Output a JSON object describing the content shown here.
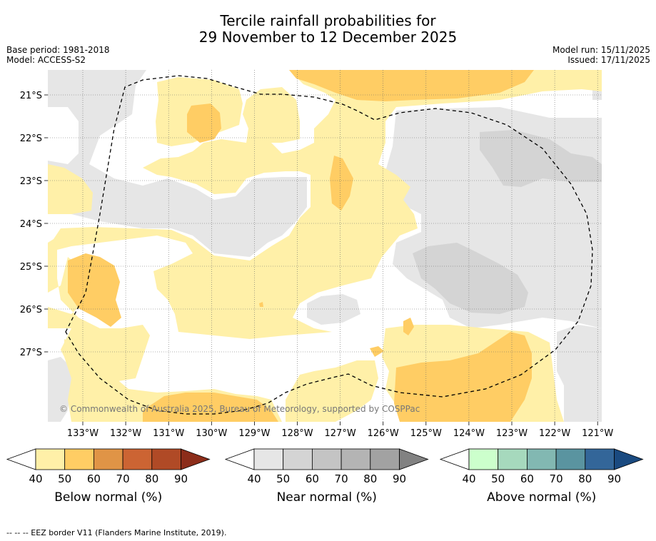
{
  "chart_data": {
    "type": "heatmap",
    "title_line1": "Tercile rainfall probabilities for",
    "title_line2": "29 November to 12 December 2025",
    "base_period": "Base period: 1981-2018",
    "model": "Model: ACCESS-S2",
    "model_run": "Model run: 15/11/2025",
    "issued": "Issued: 17/11/2025",
    "x_ticks": [
      "133°W",
      "132°W",
      "131°W",
      "130°W",
      "129°W",
      "128°W",
      "127°W",
      "126°W",
      "125°W",
      "124°W",
      "123°W",
      "122°W",
      "121°W"
    ],
    "y_ticks": [
      "21°S",
      "22°S",
      "23°S",
      "24°S",
      "25°S",
      "26°S",
      "27°S"
    ],
    "copyright": "© Commonwealth of Australia 2025, Bureau of Meteorology, supported by COSPPac",
    "colorbars": [
      {
        "label": "Below normal (%)",
        "ticks": [
          "40",
          "50",
          "60",
          "70",
          "80",
          "90"
        ],
        "colors": [
          "#fff0a8",
          "#ffcd64",
          "#e09446",
          "#cc6433",
          "#b04a26",
          "#8c2d1a"
        ]
      },
      {
        "label": "Near normal (%)",
        "ticks": [
          "40",
          "50",
          "60",
          "70",
          "80",
          "90"
        ],
        "colors": [
          "#e6e6e6",
          "#d4d4d4",
          "#c4c4c4",
          "#b4b4b4",
          "#a2a2a2",
          "#828282"
        ]
      },
      {
        "label": "Above normal (%)",
        "ticks": [
          "40",
          "50",
          "60",
          "70",
          "80",
          "90"
        ],
        "colors": [
          "#ccffcc",
          "#a6d9bd",
          "#82b8b2",
          "#5a94a0",
          "#336699",
          "#1a4a80"
        ]
      }
    ],
    "footnote": "--  --  -- EEZ border V11 (Flanders Marine Institute, 2019)."
  }
}
